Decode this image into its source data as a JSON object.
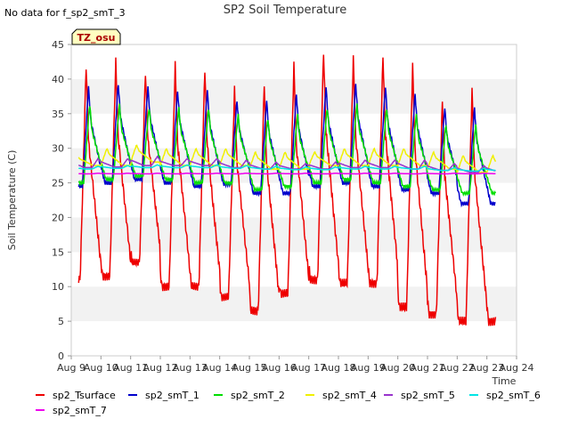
{
  "no_data_note": "No data for f_sp2_smT_3",
  "site_badge": "TZ_osu",
  "chart_data": {
    "type": "line",
    "title": "SP2 Soil Temperature",
    "xlabel": "Time",
    "ylabel": "Soil Temperature (C)",
    "xlim": [
      0,
      15
    ],
    "ylim": [
      0,
      45
    ],
    "yticks": [
      0,
      5,
      10,
      15,
      20,
      25,
      30,
      35,
      40,
      45
    ],
    "xtick_labels": [
      "Aug 9",
      "Aug 10",
      "Aug 11",
      "Aug 12",
      "Aug 13",
      "Aug 14",
      "Aug 15",
      "Aug 16",
      "Aug 17",
      "Aug 18",
      "Aug 19",
      "Aug 20",
      "Aug 21",
      "Aug 22",
      "Aug 23",
      "Aug 24"
    ],
    "x_unit": "days since Aug 9 00:00",
    "grid": "horizontal bands",
    "series": [
      {
        "name": "sp2_Tsurface",
        "color": "#ee0000",
        "x_start": 0.25,
        "x_end": 14.3,
        "peak_x_offset": 0.5,
        "daily_max": [
          42,
          42.5,
          41,
          42,
          41.5,
          38.5,
          39.5,
          42,
          44,
          43,
          43.5,
          42,
          37,
          38.5
        ],
        "daily_min": [
          11,
          11.5,
          13.5,
          10,
          10,
          8.5,
          6.5,
          9,
          11,
          10.5,
          10.5,
          7,
          6,
          5
        ]
      },
      {
        "name": "sp2_smT_1",
        "color": "#0000cc",
        "x_start": 0.25,
        "x_end": 14.3,
        "peak_x_offset": 0.58,
        "daily_max": [
          39,
          39.5,
          39,
          38.5,
          38.5,
          37,
          37,
          38,
          39,
          39.5,
          39,
          38,
          36,
          36
        ],
        "daily_min": [
          24.5,
          25,
          25.5,
          25,
          24.5,
          24.8,
          23.5,
          23.5,
          24.5,
          25,
          24.5,
          24,
          23.5,
          22
        ]
      },
      {
        "name": "sp2_smT_2",
        "color": "#00dd00",
        "x_start": 0.25,
        "x_end": 14.3,
        "peak_x_offset": 0.62,
        "daily_max": [
          36.5,
          36.5,
          36,
          36,
          36,
          35,
          34.5,
          35,
          36,
          36.5,
          36,
          35,
          33.5,
          33.5
        ],
        "daily_min": [
          25,
          25.5,
          26,
          25.5,
          25,
          25,
          24,
          24.5,
          25,
          25.5,
          25,
          24.5,
          24,
          23.5
        ]
      },
      {
        "name": "sp2_smT_4",
        "color": "#f0f000",
        "x_start": 0.25,
        "x_end": 14.3,
        "peak_x_offset": 0.2,
        "daily_max": [
          29,
          30,
          30.5,
          30,
          30,
          30,
          29.5,
          29.5,
          29.5,
          30,
          30,
          30,
          29.5,
          29
        ],
        "daily_min": [
          27.5,
          27.5,
          28,
          27.5,
          27.5,
          27.5,
          27,
          27,
          27.5,
          27.5,
          27.5,
          27.5,
          27,
          26.5
        ]
      },
      {
        "name": "sp2_smT_5",
        "color": "#9933cc",
        "x_start": 0.25,
        "x_end": 14.3,
        "peak_x_offset": 0.9,
        "daily_max": [
          28.5,
          28.5,
          28.8,
          28.5,
          28.5,
          28.3,
          28,
          27.8,
          28,
          28.3,
          28.3,
          28.3,
          27.8,
          27.5
        ],
        "daily_min": [
          27.2,
          27.3,
          27.5,
          27.5,
          27.5,
          27.2,
          27,
          27,
          27,
          27.2,
          27.2,
          27,
          26.8,
          26.5
        ]
      },
      {
        "name": "sp2_smT_6",
        "color": "#00e5e5",
        "x_start": 0.25,
        "x_end": 14.3,
        "peak_x_offset": 0.9,
        "daily_max": [
          27.4,
          27.5,
          27.6,
          27.6,
          27.6,
          27.5,
          27.4,
          27.3,
          27.3,
          27.4,
          27.4,
          27.4,
          27.2,
          27.1
        ],
        "daily_min": [
          27.0,
          27.1,
          27.2,
          27.2,
          27.2,
          27.1,
          27.0,
          26.9,
          26.9,
          27.0,
          27.0,
          27.0,
          26.8,
          26.7
        ]
      },
      {
        "name": "sp2_smT_7",
        "color": "#ee00ee",
        "x_start": 0.25,
        "x_end": 14.3,
        "peak_x_offset": 0.9,
        "daily_max": [
          26.4,
          26.4,
          26.4,
          26.4,
          26.4,
          26.4,
          26.4,
          26.4,
          26.4,
          26.4,
          26.4,
          26.4,
          26.4,
          26.4
        ],
        "daily_min": [
          26.3,
          26.3,
          26.3,
          26.3,
          26.3,
          26.3,
          26.3,
          26.3,
          26.3,
          26.3,
          26.3,
          26.3,
          26.3,
          26.3
        ]
      }
    ]
  }
}
